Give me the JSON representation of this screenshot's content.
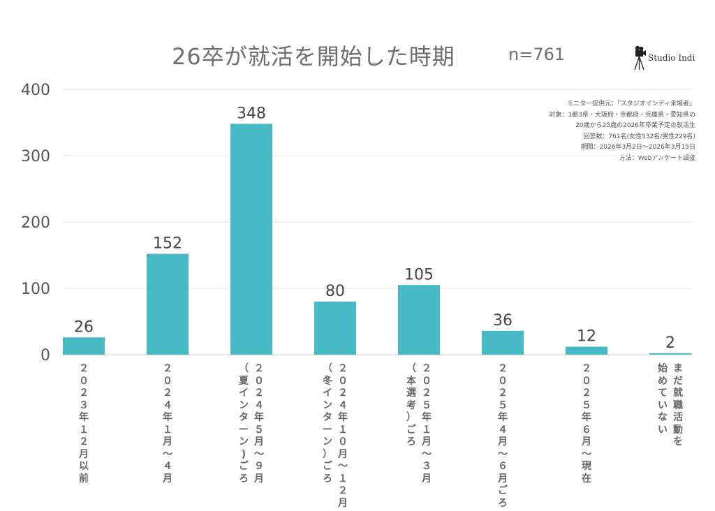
{
  "title": "26卒が就活を開始した時期",
  "sample_size": "n=761",
  "logo": {
    "text": "Studio Indi",
    "icon": "film-camera-tripod-icon"
  },
  "notes": [
    "モニター提供元：「スタジオインディ来場者」",
    "対象：1都3県・大阪府・京都府・兵庫県・愛知県の",
    "20歳から25歳の2026年卒業予定の就活生",
    "回答数：761名(女性532名/男性229名)",
    "期間：2026年3月2日〜2026年3月15日",
    "方法：Webアンケート調査"
  ],
  "colors": {
    "bar": "#47b9c4",
    "grid": "#e6e6e6",
    "text": "#555555"
  },
  "chart_data": {
    "type": "bar",
    "title": "26卒が就活を開始した時期",
    "categories": [
      "２０２３年１２月以前",
      "２０２４年１月〜４月",
      "２０２４年５月〜９月（夏インターン）ごろ",
      "２０２４年１０月〜１２月（冬インターン）ごろ",
      "２０２５年１月〜３月（本選考）ごろ",
      "２０２５年４月〜６月ごろ",
      "２０２５年６月〜現在",
      "まだ就職活動を始めていない"
    ],
    "category_columns": [
      [
        [
          "２",
          "０",
          "２",
          "３",
          "年",
          "１",
          "２",
          "月",
          "以",
          "前"
        ]
      ],
      [
        [
          "２",
          "０",
          "２",
          "４",
          "年",
          "１",
          "月",
          "〜",
          "４",
          "月"
        ]
      ],
      [
        [
          "２",
          "０",
          "２",
          "４",
          "年",
          "５",
          "月",
          "〜",
          "９",
          "月"
        ],
        [
          "（",
          "夏",
          "イ",
          "ン",
          "タ",
          "ー",
          "ン",
          ")",
          "ご",
          "ろ"
        ]
      ],
      [
        [
          "２",
          "０",
          "２",
          "４",
          "年",
          "１",
          "０",
          "月",
          "〜",
          "１",
          "２",
          "月"
        ],
        [
          "（",
          "冬",
          "イ",
          "ン",
          "タ",
          "ー",
          "ン",
          "）",
          "ご",
          "ろ"
        ]
      ],
      [
        [
          "２",
          "０",
          "２",
          "５",
          "年",
          "１",
          "月",
          "〜",
          "３",
          "月"
        ],
        [
          "（",
          "本",
          "選",
          "考",
          "）",
          "ご",
          "ろ"
        ]
      ],
      [
        [
          "２",
          "０",
          "２",
          "５",
          "年",
          "４",
          "月",
          "〜",
          "６",
          "月",
          "ご",
          "ろ"
        ]
      ],
      [
        [
          "２",
          "０",
          "２",
          "５",
          "年",
          "６",
          "月",
          "〜",
          "現",
          "在"
        ]
      ],
      [
        [
          "ま",
          "だ",
          "就",
          "職",
          "活",
          "動",
          "を"
        ],
        [
          "始",
          "め",
          "て",
          "い",
          "な",
          "い"
        ]
      ]
    ],
    "values": [
      26,
      152,
      348,
      80,
      105,
      36,
      12,
      2
    ],
    "ylim": [
      0,
      400
    ],
    "yticks": [
      "0",
      "100",
      "200",
      "300",
      "400"
    ],
    "grid": true,
    "legend": "none"
  }
}
